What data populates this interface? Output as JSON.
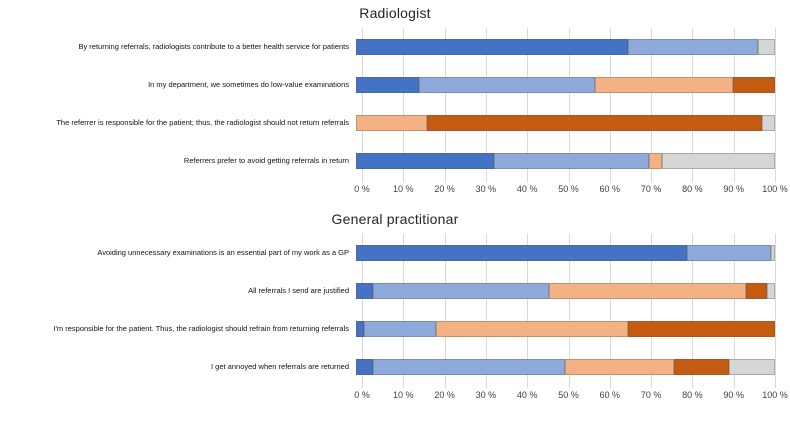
{
  "chart_data": [
    {
      "type": "bar",
      "orientation": "horizontal",
      "stacked": true,
      "title": "Radiologist",
      "categories": [
        "By returning referrals, radiologists contribute to a better health service for patients",
        "In my department, we sometimes do low-value examinations",
        "The referrer is responsible for the patient; thus, the radiologist should not return referrals",
        "Referrers prefer to avoid getting referrals in return"
      ],
      "series": [
        {
          "name": "dark-blue",
          "color": "#4472C4",
          "values": [
            65,
            15,
            0,
            33
          ]
        },
        {
          "name": "light-blue",
          "color": "#8EAADB",
          "values": [
            31,
            42,
            0,
            37
          ]
        },
        {
          "name": "light-orange",
          "color": "#F4B183",
          "values": [
            0,
            33,
            17,
            3
          ]
        },
        {
          "name": "dark-orange",
          "color": "#C55A11",
          "values": [
            0,
            10,
            80,
            0
          ]
        },
        {
          "name": "gray",
          "color": "#D6D6D6",
          "values": [
            4,
            0,
            3,
            27
          ]
        }
      ],
      "xlim": [
        0,
        100
      ],
      "grid": true,
      "legend": false,
      "x_ticks": [
        "0 %",
        "10 %",
        "20 %",
        "30 %",
        "40 %",
        "50 %",
        "60 %",
        "70 %",
        "80 %",
        "90 %",
        "100 %"
      ]
    },
    {
      "type": "bar",
      "orientation": "horizontal",
      "stacked": true,
      "title": "General practitionar",
      "categories": [
        "Avoiding unnecessary examinations is an essential part of my work as a GP",
        "All referrals I send are justified",
        "I'm responsible for the patient. Thus, the radiologist should refrain from returning referrals",
        "I get annoyed when referrals are returned"
      ],
      "series": [
        {
          "name": "dark-blue",
          "color": "#4472C4",
          "values": [
            79,
            4,
            2,
            4
          ]
        },
        {
          "name": "light-blue",
          "color": "#8EAADB",
          "values": [
            20,
            42,
            17,
            46
          ]
        },
        {
          "name": "light-orange",
          "color": "#F4B183",
          "values": [
            0,
            47,
            46,
            26
          ]
        },
        {
          "name": "dark-orange",
          "color": "#C55A11",
          "values": [
            0,
            5,
            35,
            13
          ]
        },
        {
          "name": "gray",
          "color": "#D6D6D6",
          "values": [
            1,
            2,
            0,
            11
          ]
        }
      ],
      "xlim": [
        0,
        100
      ],
      "grid": true,
      "legend": false,
      "x_ticks": [
        "0 %",
        "10 %",
        "20 %",
        "30 %",
        "40 %",
        "50 %",
        "60 %",
        "70 %",
        "80 %",
        "90 %",
        "100 %"
      ]
    }
  ]
}
